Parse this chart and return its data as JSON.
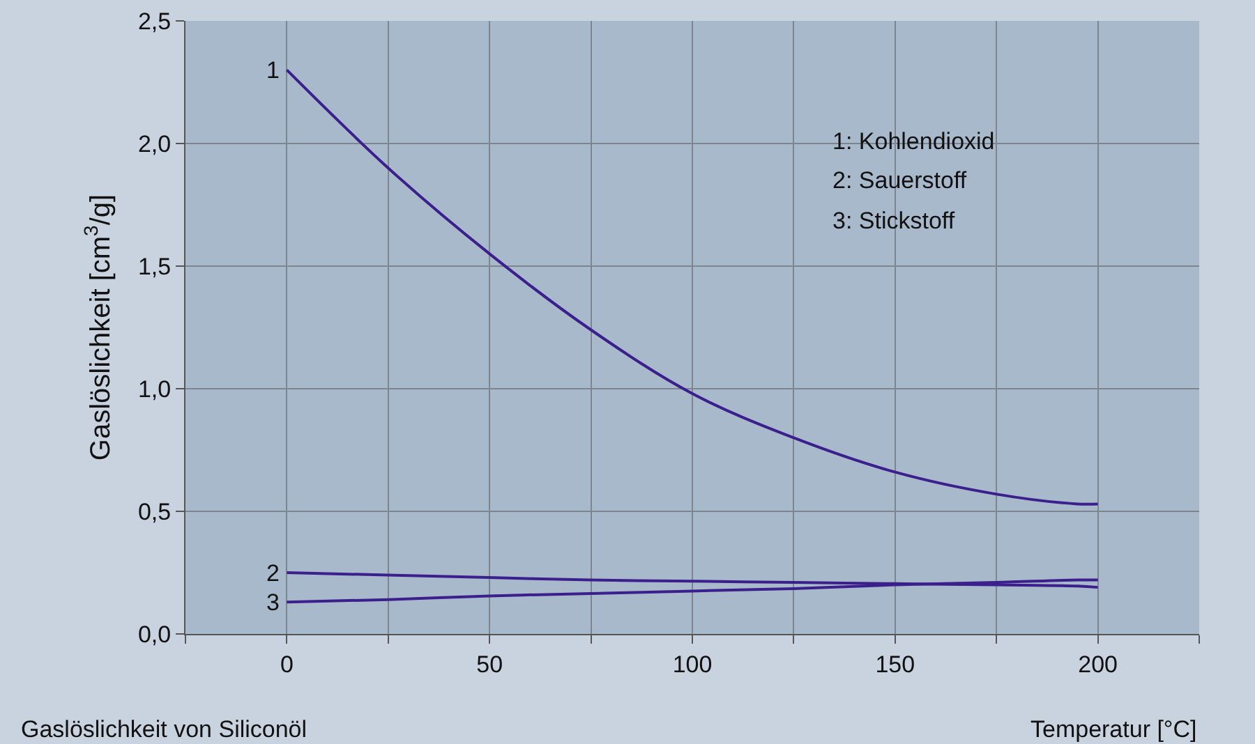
{
  "chart_data": {
    "type": "line",
    "xlabel": "Temperatur [°C]",
    "ylabel": "Gaslöslichkeit [cm$^{3}$/g]",
    "annotations": [
      "1: Kohlendioxid",
      "2: Sauerstoff",
      "3: Stickstoff",
      "Gaslöslichkeit von Siliconöl"
    ],
    "x": [
      0,
      25,
      50,
      75,
      100,
      125,
      150,
      175,
      195,
      200
    ],
    "series": [
      {
        "name": "1",
        "color": "#3b1f8c",
        "values": [
          2.3,
          1.9,
          1.55,
          1.24,
          0.98,
          0.8,
          0.66,
          0.57,
          0.53,
          0.53
        ]
      },
      {
        "name": "2",
        "color": "#3b1f8c",
        "values": [
          0.25,
          0.24,
          0.23,
          0.22,
          0.215,
          0.21,
          0.205,
          0.2,
          0.195,
          0.19
        ]
      },
      {
        "name": "3",
        "color": "#3b1f8c",
        "values": [
          0.13,
          0.14,
          0.155,
          0.165,
          0.175,
          0.185,
          0.2,
          0.21,
          0.22,
          0.22
        ]
      }
    ],
    "xlim": [
      -25,
      225
    ],
    "xticks": [
      {
        "value": -25,
        "label": null
      },
      0,
      {
        "value": 25,
        "label": null
      },
      50,
      {
        "value": 75,
        "label": null
      },
      100,
      {
        "value": 125,
        "label": null
      },
      150,
      {
        "value": 175,
        "label": null
      },
      200,
      {
        "value": 225,
        "label": null
      }
    ],
    "ylim": [
      0,
      2.5
    ],
    "yticks": [
      {
        "value": 0,
        "label": "0,0"
      },
      {
        "value": 0.5,
        "label": "0,5"
      },
      {
        "value": 1,
        "label": "1,0"
      },
      {
        "value": 1.5,
        "label": "1,5"
      },
      {
        "value": 2,
        "label": "2,0"
      },
      {
        "value": 2.5,
        "label": "2,5"
      }
    ],
    "grid": true,
    "legend": false,
    "marker": "none",
    "line_style": "solid"
  }
}
